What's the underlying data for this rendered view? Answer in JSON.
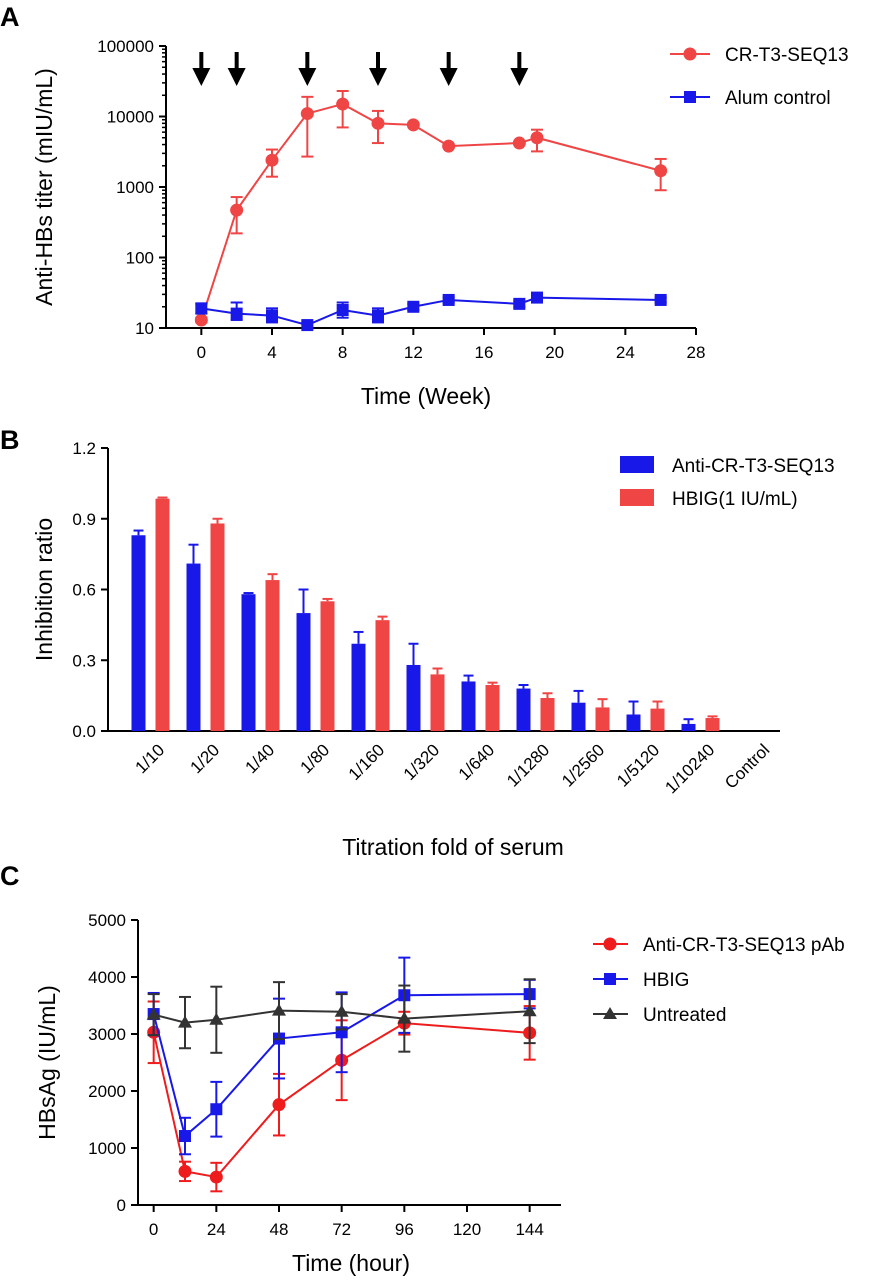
{
  "figure": {
    "panel_letters": [
      "A",
      "B",
      "C"
    ]
  },
  "chart_data": [
    {
      "panel": "A",
      "type": "line",
      "xlabel": "Time (Week)",
      "ylabel": "Anti-HBs titer  (mIU/mL)",
      "x_ticks": [
        "0",
        "4",
        "8",
        "12",
        "16",
        "20",
        "24",
        "28"
      ],
      "y_ticks": [
        "10",
        "100",
        "1000",
        "10000",
        "100000"
      ],
      "xlim": [
        -2,
        28
      ],
      "ylim": [
        10,
        100000
      ],
      "y_scale": "log",
      "legend_position": "top-right",
      "immunization_arrows_weeks": [
        0,
        2,
        6,
        10,
        14,
        18
      ],
      "series": [
        {
          "name": "CR-T3-SEQ13",
          "color": "#ef4545",
          "marker": "circle",
          "x": [
            0,
            2,
            4,
            6,
            8,
            10,
            12,
            14,
            18,
            19,
            26
          ],
          "y": [
            13,
            470,
            2400,
            11000,
            15000,
            8000,
            7600,
            3800,
            4200,
            5000,
            1700
          ],
          "err_low": [
            12,
            220,
            1400,
            2700,
            7000,
            4200,
            7600,
            3800,
            4200,
            3200,
            900
          ],
          "err_high": [
            14,
            720,
            3400,
            19000,
            23000,
            12000,
            7600,
            3800,
            4200,
            6500,
            2500
          ]
        },
        {
          "name": "Alum control",
          "color": "#1818e8",
          "marker": "square",
          "x": [
            0,
            2,
            4,
            6,
            8,
            10,
            12,
            14,
            18,
            19,
            26
          ],
          "y": [
            19,
            16,
            15,
            11,
            18,
            15,
            20,
            25,
            22,
            27,
            25
          ],
          "err_low": [
            16,
            13,
            12,
            10,
            14,
            12,
            18,
            23,
            20,
            25,
            23
          ],
          "err_high": [
            22,
            23,
            19,
            12,
            23,
            19,
            22,
            27,
            24,
            29,
            27
          ]
        }
      ]
    },
    {
      "panel": "B",
      "type": "bar",
      "xlabel": "Titration fold of serum",
      "ylabel": "Inhibition ratio",
      "categories": [
        "1/10",
        "1/20",
        "1/40",
        "1/80",
        "1/160",
        "1/320",
        "1/640",
        "1/1280",
        "1/2560",
        "1/5120",
        "1/10240",
        "Control"
      ],
      "y_ticks": [
        "0.0",
        "0.3",
        "0.6",
        "0.9",
        "1.2"
      ],
      "ylim": [
        0,
        1.2
      ],
      "legend_position": "top-right",
      "series": [
        {
          "name": "Anti-CR-T3-SEQ13",
          "color": "#1818e8",
          "values": [
            0.83,
            0.71,
            0.58,
            0.5,
            0.37,
            0.28,
            0.21,
            0.18,
            0.12,
            0.07,
            0.03,
            0
          ],
          "err": [
            0.02,
            0.08,
            0.005,
            0.1,
            0.05,
            0.09,
            0.025,
            0.015,
            0.05,
            0.055,
            0.02,
            0
          ]
        },
        {
          "name": "HBIG(1 IU/mL)",
          "color": "#ef4545",
          "values": [
            0.985,
            0.88,
            0.64,
            0.55,
            0.47,
            0.24,
            0.195,
            0.14,
            0.1,
            0.095,
            0.055,
            0
          ],
          "err": [
            0.005,
            0.02,
            0.025,
            0.01,
            0.015,
            0.025,
            0.01,
            0.02,
            0.035,
            0.03,
            0.007,
            0
          ]
        }
      ]
    },
    {
      "panel": "C",
      "type": "line",
      "xlabel": "Time (hour)",
      "ylabel": "HBsAg (IU/mL)",
      "x_ticks": [
        "0",
        "24",
        "48",
        "72",
        "96",
        "120",
        "144"
      ],
      "y_ticks": [
        "0",
        "1000",
        "2000",
        "3000",
        "4000",
        "5000"
      ],
      "xlim": [
        -6,
        156
      ],
      "ylim": [
        0,
        5000
      ],
      "legend_position": "top-right",
      "series": [
        {
          "name": "Anti-CR-T3-SEQ13 pAb",
          "color": "#ee1c1c",
          "marker": "circle",
          "x": [
            0,
            12,
            24,
            48,
            72,
            96,
            144
          ],
          "y": [
            3030,
            590,
            490,
            1760,
            2540,
            3190,
            3020
          ],
          "err": [
            540,
            170,
            250,
            540,
            700,
            200,
            470
          ]
        },
        {
          "name": "HBIG",
          "color": "#1818e8",
          "marker": "square",
          "x": [
            0,
            12,
            24,
            48,
            72,
            96,
            144
          ],
          "y": [
            3350,
            1210,
            1680,
            2920,
            3030,
            3680,
            3700
          ],
          "err": [
            370,
            320,
            480,
            700,
            700,
            660,
            250
          ]
        },
        {
          "name": "Untreated",
          "color": "#333333",
          "marker": "triangle",
          "x": [
            0,
            12,
            24,
            48,
            72,
            96,
            144
          ],
          "y": [
            3340,
            3200,
            3250,
            3410,
            3390,
            3270,
            3400
          ],
          "err": [
            360,
            450,
            580,
            500,
            310,
            580,
            560
          ]
        }
      ]
    }
  ]
}
